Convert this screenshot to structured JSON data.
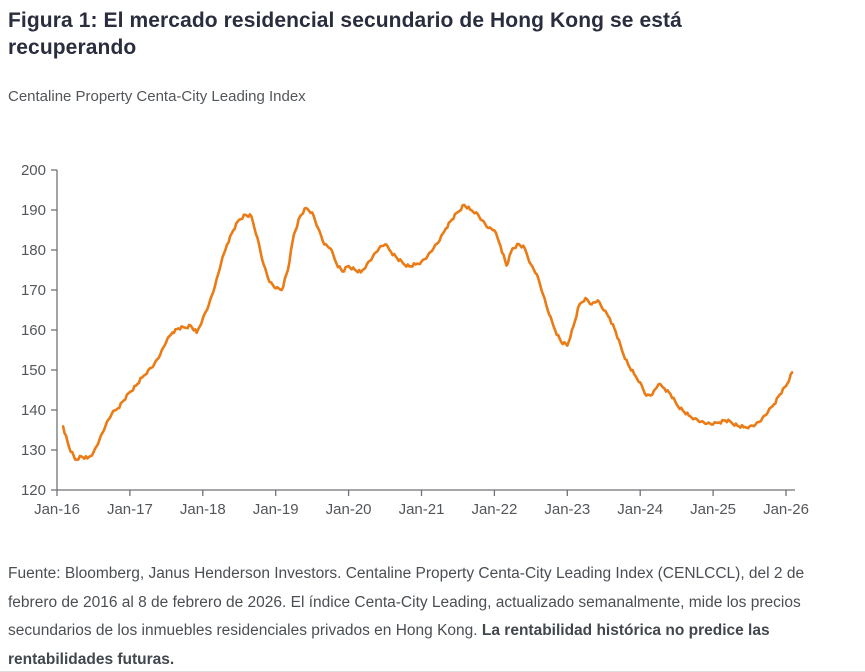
{
  "figure": {
    "title": "Figura 1: El mercado residencial secundario de Hong Kong se está recuperando",
    "subtitle": "Centaline Property Centa-City Leading Index"
  },
  "source_note": {
    "regular": "Fuente: Bloomberg, Janus Henderson Investors. Centaline Property Centa-City Leading Index (CENLCCL), del 2 de febrero de 2016 al 8 de febrero de 2026. El índice Centa-City Leading, actualizado semanalmente, mide los precios secundarios de los inmuebles residenciales privados en Hong Kong. ",
    "bold": "La rentabilidad histórica no predice las rentabilidades futuras."
  },
  "colors": {
    "line": "#EA7B15",
    "title": "#2A2D3E",
    "axis": "#6F7276",
    "tick_label": "#53565A",
    "body_text": "#4A4F54"
  },
  "chart_data": {
    "type": "line",
    "title": "Centaline Property Centa-City Leading Index",
    "xlabel": "",
    "ylabel": "",
    "ylim": [
      120,
      200
    ],
    "y_ticks": [
      200,
      190,
      180,
      170,
      160,
      150,
      140,
      130,
      120
    ],
    "x_tick_labels": [
      "Jan-16",
      "Jan-17",
      "Jan-18",
      "Jan-19",
      "Jan-20",
      "Jan-21",
      "Jan-22",
      "Jan-23",
      "Jan-24",
      "Jan-25",
      "Jan-26"
    ],
    "grid": "off",
    "legend": "none",
    "start_month": "2016-02",
    "end_month": "2026-02",
    "frequency": "monthly",
    "series": [
      {
        "name": "Centa-City Leading Index",
        "values": [
          135.9,
          130.6,
          127.6,
          128.4,
          127.9,
          129.4,
          132.6,
          136.1,
          139.0,
          140.4,
          142.4,
          144.5,
          146.1,
          148.1,
          149.9,
          151.4,
          153.9,
          157.1,
          159.4,
          160.4,
          160.6,
          161.1,
          159.3,
          162.9,
          166.4,
          170.9,
          176.6,
          181.4,
          184.9,
          187.6,
          188.8,
          188.4,
          183.0,
          176.4,
          172.0,
          170.4,
          170.0,
          175.0,
          183.9,
          188.4,
          190.5,
          189.4,
          185.4,
          181.4,
          180.4,
          176.6,
          174.6,
          176.0,
          175.1,
          174.4,
          176.4,
          178.4,
          180.4,
          181.4,
          179.5,
          177.9,
          176.6,
          175.9,
          176.4,
          177.1,
          178.5,
          180.5,
          182.4,
          185.4,
          187.6,
          189.5,
          191.3,
          190.1,
          189.4,
          187.4,
          185.5,
          184.9,
          181.0,
          176.1,
          180.4,
          181.5,
          180.4,
          176.4,
          173.9,
          168.9,
          163.9,
          159.9,
          157.0,
          156.1,
          160.9,
          166.4,
          168.0,
          166.4,
          167.4,
          164.9,
          162.9,
          159.4,
          154.9,
          151.4,
          149.0,
          146.9,
          143.6,
          143.9,
          146.4,
          145.4,
          143.9,
          141.4,
          139.9,
          138.6,
          137.9,
          137.1,
          136.6,
          136.4,
          136.9,
          137.4,
          136.9,
          136.1,
          135.7,
          135.9,
          136.4,
          137.6,
          139.4,
          141.4,
          143.9,
          146.0,
          149.4
        ]
      }
    ]
  }
}
